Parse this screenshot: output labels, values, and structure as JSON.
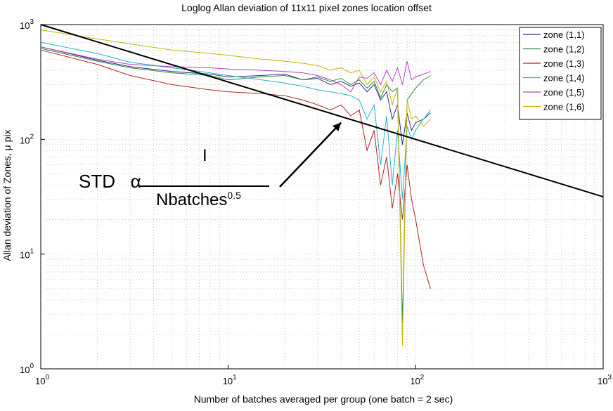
{
  "chart_data": {
    "type": "line",
    "title": "Loglog Allan deviation of 11x11 pixel zones location offset",
    "xlabel": "Number of batches averaged per group (one batch = 2 sec)",
    "ylabel": "Allan deviation of Zones, μ pix",
    "xscale": "log",
    "yscale": "log",
    "xlim": [
      1,
      1000
    ],
    "ylim": [
      1,
      1000
    ],
    "grid": true,
    "legend_position": "top-right",
    "x_ticks": [
      {
        "value": 1,
        "base": "10",
        "exp": "0"
      },
      {
        "value": 10,
        "base": "10",
        "exp": "1"
      },
      {
        "value": 100,
        "base": "10",
        "exp": "2"
      },
      {
        "value": 1000,
        "base": "10",
        "exp": "3"
      }
    ],
    "y_ticks": [
      {
        "value": 1,
        "base": "10",
        "exp": "0"
      },
      {
        "value": 10,
        "base": "10",
        "exp": "1"
      },
      {
        "value": 100,
        "base": "10",
        "exp": "2"
      },
      {
        "value": 1000,
        "base": "10",
        "exp": "3"
      }
    ],
    "series": [
      {
        "name": "zone (1,1)",
        "color": "#2b2b8c",
        "x": [
          1,
          2,
          3,
          5,
          8,
          10,
          15,
          20,
          25,
          30,
          35,
          40,
          45,
          50,
          55,
          60,
          65,
          70,
          75,
          80,
          85,
          90,
          95,
          100,
          110,
          120
        ],
        "y": [
          640,
          490,
          430,
          390,
          370,
          350,
          360,
          370,
          330,
          340,
          300,
          320,
          290,
          310,
          260,
          300,
          220,
          260,
          150,
          200,
          90,
          170,
          120,
          140,
          150,
          170
        ]
      },
      {
        "name": "zone (1,2)",
        "color": "#2e8b3a",
        "x": [
          1,
          2,
          3,
          5,
          8,
          10,
          15,
          20,
          25,
          30,
          35,
          40,
          45,
          50,
          55,
          60,
          65,
          70,
          75,
          80,
          85,
          90,
          95,
          100,
          110,
          120
        ],
        "y": [
          620,
          480,
          420,
          380,
          360,
          330,
          350,
          360,
          330,
          350,
          320,
          340,
          300,
          330,
          280,
          320,
          230,
          300,
          260,
          280,
          2.5,
          220,
          250,
          280,
          330,
          360
        ]
      },
      {
        "name": "zone (1,3)",
        "color": "#b22222",
        "x": [
          1,
          2,
          3,
          5,
          8,
          10,
          15,
          20,
          25,
          30,
          35,
          40,
          45,
          50,
          55,
          60,
          65,
          70,
          75,
          80,
          85,
          90,
          95,
          100,
          110,
          120
        ],
        "y": [
          600,
          450,
          360,
          300,
          270,
          260,
          250,
          240,
          220,
          200,
          180,
          200,
          160,
          180,
          80,
          120,
          40,
          70,
          25,
          50,
          20,
          60,
          30,
          20,
          8,
          5
        ]
      },
      {
        "name": "zone (1,4)",
        "color": "#1fb5c9",
        "x": [
          1,
          2,
          3,
          5,
          8,
          10,
          15,
          20,
          25,
          30,
          35,
          40,
          45,
          50,
          55,
          60,
          65,
          70,
          75,
          80,
          85,
          90,
          95,
          100,
          110,
          120
        ],
        "y": [
          700,
          560,
          470,
          420,
          380,
          360,
          330,
          310,
          290,
          270,
          260,
          250,
          240,
          220,
          150,
          200,
          60,
          160,
          40,
          120,
          30,
          130,
          100,
          120,
          150,
          180
        ]
      },
      {
        "name": "zone (1,5)",
        "color": "#b440c0",
        "x": [
          1,
          2,
          3,
          5,
          8,
          10,
          15,
          20,
          25,
          30,
          35,
          40,
          45,
          50,
          55,
          60,
          65,
          70,
          75,
          80,
          85,
          90,
          95,
          100,
          110,
          120
        ],
        "y": [
          640,
          500,
          450,
          430,
          420,
          410,
          400,
          390,
          380,
          360,
          330,
          300,
          260,
          350,
          340,
          380,
          300,
          400,
          320,
          420,
          300,
          480,
          330,
          350,
          370,
          390
        ]
      },
      {
        "name": "zone (1,6)",
        "color": "#c8b400",
        "x": [
          1,
          2,
          3,
          5,
          8,
          10,
          15,
          20,
          25,
          30,
          35,
          40,
          45,
          50,
          55,
          60,
          65,
          70,
          75,
          80,
          85,
          90,
          95,
          100,
          110,
          120
        ],
        "y": [
          900,
          750,
          680,
          600,
          560,
          540,
          500,
          480,
          460,
          440,
          400,
          420,
          380,
          400,
          300,
          350,
          260,
          320,
          200,
          280,
          1.6,
          220,
          150,
          160,
          130,
          150
        ]
      }
    ],
    "reference_line": {
      "x": [
        1,
        1000
      ],
      "y": [
        1000,
        31.6
      ],
      "color": "#000000"
    },
    "annotation": {
      "prefix": "STD",
      "symbol": "α",
      "numerator": "I",
      "denominator": "Nbatches",
      "exponent": "0.5",
      "arrow_target_x": 40,
      "arrow_target_y": 140
    }
  }
}
